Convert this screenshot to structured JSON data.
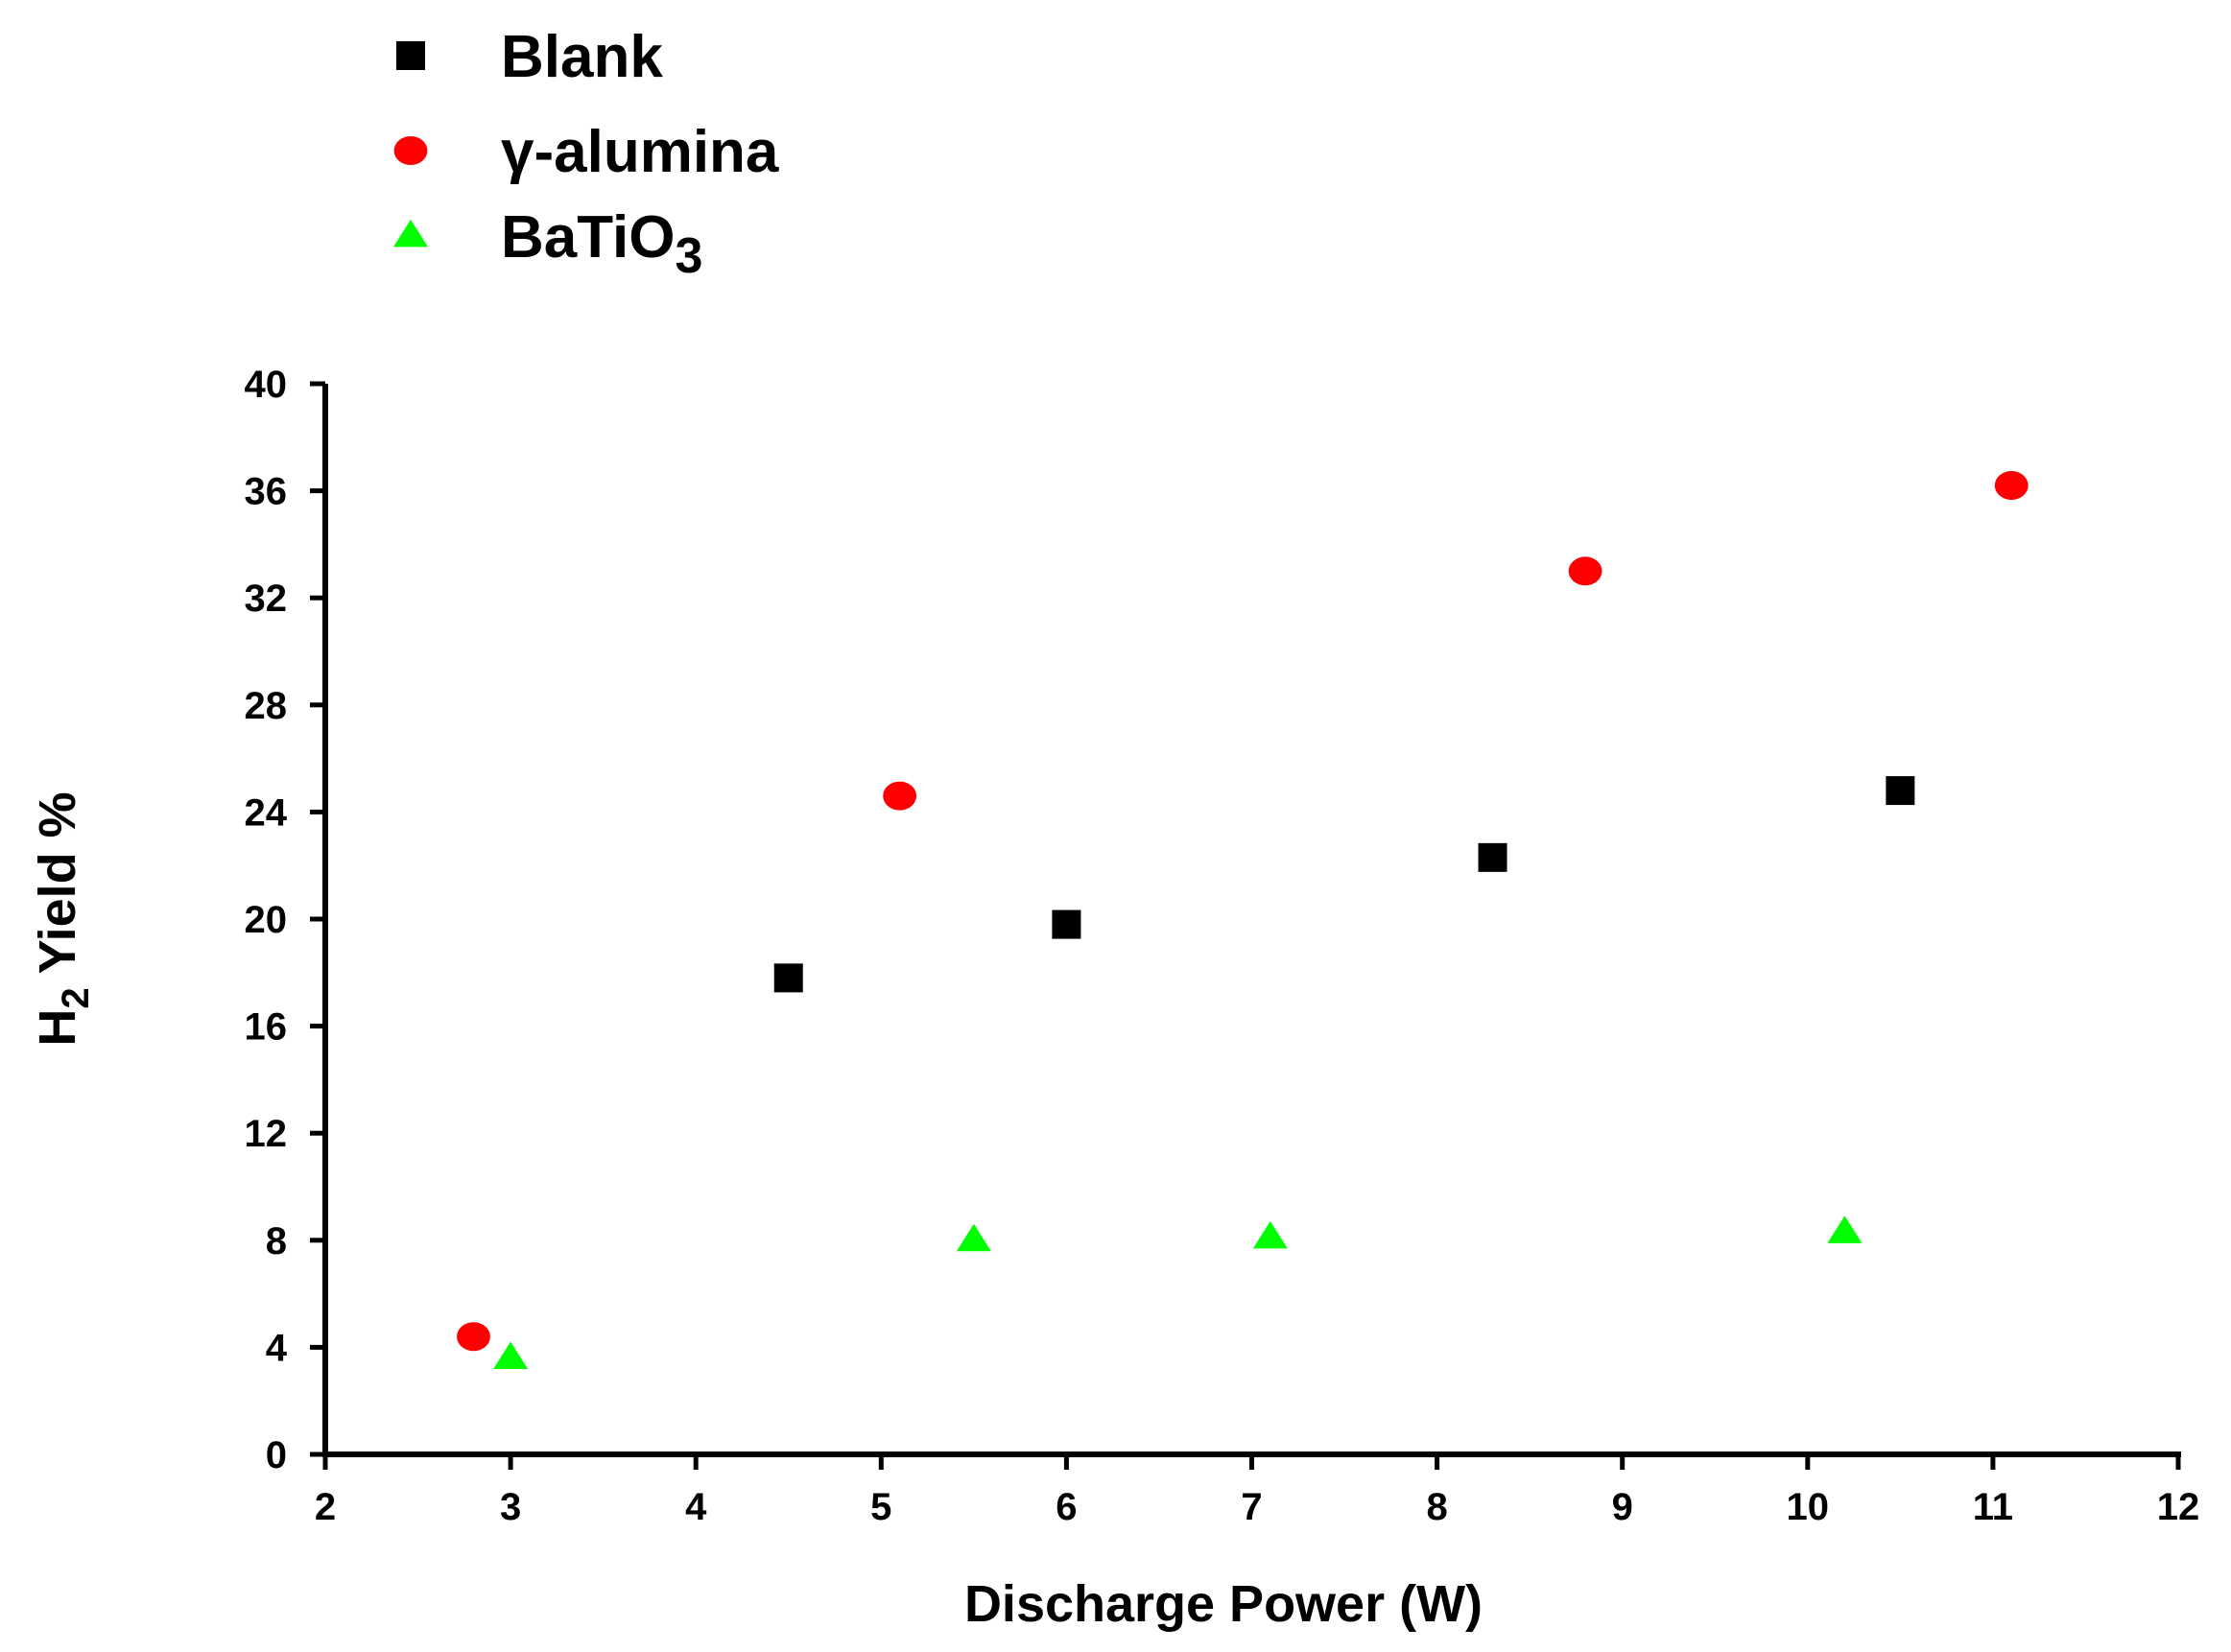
{
  "chart_data": {
    "type": "scatter",
    "title": "",
    "xlabel": "Discharge Power (W)",
    "ylabel_main": "H",
    "ylabel_sub": "2",
    "ylabel_rest": " Yield %",
    "xlim": [
      2,
      12
    ],
    "ylim": [
      0,
      40
    ],
    "xticks": [
      2,
      3,
      4,
      5,
      6,
      7,
      8,
      9,
      10,
      11,
      12
    ],
    "yticks": [
      0,
      4,
      8,
      12,
      16,
      20,
      24,
      28,
      32,
      36,
      40
    ],
    "grid": false,
    "legend_position": "top-left",
    "series": [
      {
        "name": "Blank",
        "label_main": "Blank",
        "label_sub": "",
        "marker": "square",
        "color": "#000000",
        "x": [
          4.5,
          6.0,
          8.3,
          10.5
        ],
        "y": [
          17.8,
          19.8,
          22.3,
          24.8
        ]
      },
      {
        "name": "γ-alumina",
        "label_main": "γ-alumina",
        "label_sub": "",
        "marker": "circle",
        "color": "#ff0000",
        "x": [
          2.8,
          5.1,
          8.8,
          11.1
        ],
        "y": [
          4.4,
          24.6,
          33.0,
          36.2
        ]
      },
      {
        "name": "BaTiO3",
        "label_main": "BaTiO",
        "label_sub": "3",
        "marker": "triangle",
        "color": "#00ff00",
        "x": [
          3.0,
          5.5,
          7.1,
          10.2
        ],
        "y": [
          3.6,
          8.0,
          8.1,
          8.3
        ]
      }
    ]
  }
}
